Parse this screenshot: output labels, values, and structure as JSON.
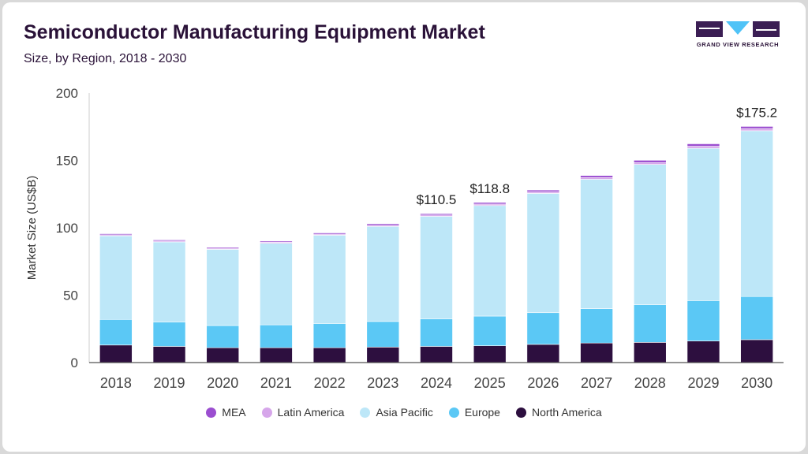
{
  "header": {
    "title": "Semiconductor Manufacturing Equipment Market",
    "subtitle": "Size, by Region, 2018 - 2030"
  },
  "logo": {
    "text": "GRAND VIEW RESEARCH",
    "icon": "gvr-logo-icon",
    "colors": {
      "dark": "#3b1e54",
      "accent": "#4fc3f7"
    }
  },
  "chart_data": {
    "type": "bar",
    "stacked": true,
    "categories": [
      "2018",
      "2019",
      "2020",
      "2021",
      "2022",
      "2023",
      "2024",
      "2025",
      "2026",
      "2027",
      "2028",
      "2029",
      "2030"
    ],
    "series": [
      {
        "name": "North America",
        "color": "#2d0f3f",
        "values": [
          13.0,
          12.0,
          11.0,
          11.0,
          11.0,
          11.5,
          12.0,
          12.5,
          13.5,
          14.5,
          15.0,
          16.0,
          17.0
        ]
      },
      {
        "name": "Europe",
        "color": "#5bc8f5",
        "values": [
          19.0,
          18.0,
          16.5,
          17.0,
          18.0,
          19.0,
          20.5,
          22.0,
          23.5,
          25.5,
          28.0,
          30.0,
          32.0
        ]
      },
      {
        "name": "Asia Pacific",
        "color": "#bde7f8",
        "values": [
          62.0,
          59.5,
          56.5,
          60.5,
          65.5,
          70.5,
          76.0,
          82.0,
          88.5,
          96.0,
          104.0,
          113.0,
          123.0
        ]
      },
      {
        "name": "Latin America",
        "color": "#d6a6ea",
        "values": [
          0.8,
          0.7,
          0.7,
          0.8,
          0.8,
          0.9,
          1.0,
          1.1,
          1.2,
          1.3,
          1.4,
          1.5,
          1.6
        ]
      },
      {
        "name": "MEA",
        "color": "#9b4ed0",
        "values": [
          0.8,
          0.8,
          0.8,
          0.8,
          0.9,
          1.1,
          1.0,
          1.2,
          1.3,
          1.5,
          1.7,
          1.8,
          1.6
        ]
      }
    ],
    "totals_labels": [
      {
        "category": "2024",
        "text": "$110.5",
        "value": 110.5
      },
      {
        "category": "2025",
        "text": "$118.8",
        "value": 118.8
      },
      {
        "category": "2030",
        "text": "$175.2",
        "value": 175.2
      }
    ],
    "ylabel": "Market Size (US$B)",
    "xlabel": "",
    "ylim": [
      0,
      200
    ],
    "yticks": [
      0,
      50,
      100,
      150,
      200
    ],
    "grid": false,
    "legend_position": "bottom",
    "legend_order": [
      "MEA",
      "Latin America",
      "Asia Pacific",
      "Europe",
      "North America"
    ]
  }
}
